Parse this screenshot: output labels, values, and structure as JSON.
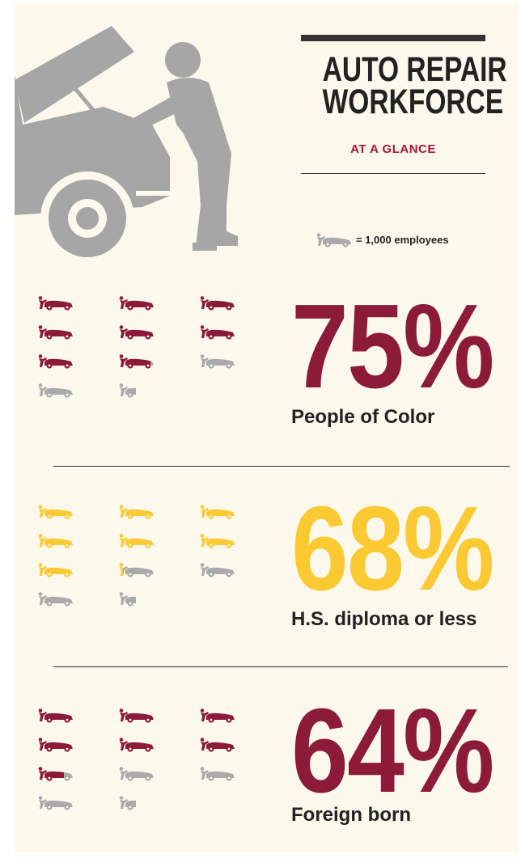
{
  "header": {
    "title_line1": "AUTO REPAIR",
    "title_line2": "WORKFORCE",
    "subtitle": "AT A GLANCE"
  },
  "legend": {
    "icon": "mechanic-car-icon",
    "text": "= 1,000 employees"
  },
  "colors": {
    "background": "#fcf8ec",
    "maroon": "#8c1b3a",
    "yellow": "#fbc932",
    "gray": "#aaaaaa",
    "dark": "#222222",
    "subtitle": "#a0183d"
  },
  "stats": [
    {
      "percent": "75%",
      "value": 75,
      "label": "People of Color",
      "color": "#8c1b3a"
    },
    {
      "percent": "68%",
      "value": 68,
      "label": "H.S. diploma or less",
      "color": "#fbc932"
    },
    {
      "percent": "64%",
      "value": 64,
      "label": "Foreign born",
      "color": "#8c1b3a"
    }
  ]
}
